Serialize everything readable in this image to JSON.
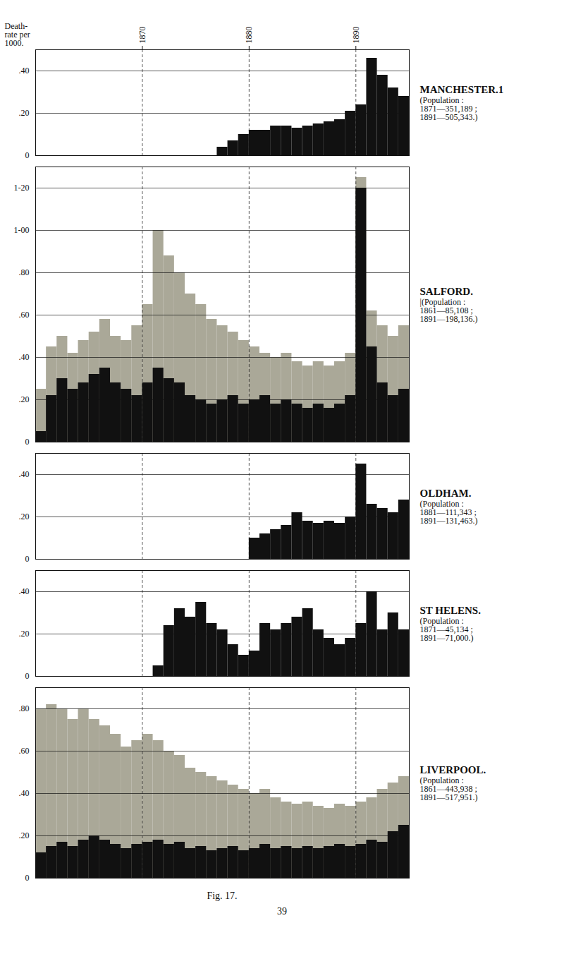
{
  "title": "Fig. 17.",
  "annotations": [
    "39"
  ],
  "chart_data": [
    {
      "type": "bar",
      "title": "MANCHESTER.1",
      "ylabel": "Death-\nrate per\n1000.",
      "annotations": [
        "(Population :",
        "1871—351,189 ;",
        "1891—505,343.)"
      ],
      "x": [
        1860,
        1861,
        1862,
        1863,
        1864,
        1865,
        1866,
        1867,
        1868,
        1869,
        1870,
        1871,
        1872,
        1873,
        1874,
        1875,
        1876,
        1877,
        1878,
        1879,
        1880,
        1881,
        1882,
        1883,
        1884,
        1885,
        1886,
        1887,
        1888,
        1889,
        1890,
        1891,
        1892,
        1893,
        1894
      ],
      "values": [
        0,
        0,
        0,
        0,
        0,
        0,
        0,
        0,
        0,
        0,
        0,
        0,
        0,
        0,
        0,
        0,
        0,
        0.04,
        0.07,
        0.1,
        0.12,
        0.12,
        0.14,
        0.14,
        0.13,
        0.14,
        0.15,
        0.16,
        0.17,
        0.21,
        0.24,
        0.46,
        0.38,
        0.32,
        0.28
      ],
      "color": "#111111",
      "xlim": [
        1860,
        1895
      ],
      "xticks": [
        1870,
        1880,
        1890
      ],
      "ylim": [
        0.0,
        0.5
      ],
      "yticks": [
        0,
        {
          "value": 0.2,
          "label": ".20"
        },
        {
          "value": 0.4,
          "label": ".40"
        }
      ],
      "grid": true
    },
    {
      "type": "bar",
      "title": "SALFORD.",
      "annotations": [
        "|(Population :",
        "1861—85,108 ;",
        "1891—198,136.)"
      ],
      "x": [
        1860,
        1861,
        1862,
        1863,
        1864,
        1865,
        1866,
        1867,
        1868,
        1869,
        1870,
        1871,
        1872,
        1873,
        1874,
        1875,
        1876,
        1877,
        1878,
        1879,
        1880,
        1881,
        1882,
        1883,
        1884,
        1885,
        1886,
        1887,
        1888,
        1889,
        1890,
        1891,
        1892,
        1893,
        1894
      ],
      "series": [
        {
          "color": "#aaa898",
          "values": [
            0.25,
            0.45,
            0.5,
            0.42,
            0.48,
            0.52,
            0.58,
            0.5,
            0.48,
            0.55,
            0.65,
            1.0,
            0.88,
            0.8,
            0.7,
            0.65,
            0.58,
            0.55,
            0.52,
            0.48,
            0.45,
            0.42,
            0.4,
            0.42,
            0.38,
            0.36,
            0.38,
            0.36,
            0.38,
            0.42,
            1.25,
            0.62,
            0.55,
            0.5,
            0.55
          ]
        },
        {
          "color": "#111111",
          "values": [
            0.05,
            0.22,
            0.3,
            0.25,
            0.28,
            0.32,
            0.35,
            0.28,
            0.25,
            0.22,
            0.28,
            0.35,
            0.3,
            0.28,
            0.22,
            0.2,
            0.18,
            0.2,
            0.22,
            0.18,
            0.2,
            0.22,
            0.18,
            0.2,
            0.18,
            0.16,
            0.18,
            0.16,
            0.18,
            0.22,
            1.2,
            0.45,
            0.28,
            0.22,
            0.25
          ]
        }
      ],
      "stacked": false,
      "xlim": [
        1860,
        1895
      ],
      "xticks": [
        1870,
        1880,
        1890
      ],
      "ylim": [
        0.0,
        1.3
      ],
      "yticks": [
        0,
        {
          "value": 0.2,
          "label": ".20"
        },
        {
          "value": 0.4,
          "label": ".40"
        },
        {
          "value": 0.6,
          "label": ".60"
        },
        {
          "value": 0.8,
          "label": ".80"
        },
        {
          "value": 1.0,
          "label": "1-00"
        },
        {
          "value": 1.2,
          "label": "1-20"
        }
      ],
      "tick_labels": "y",
      "grid": true
    },
    {
      "type": "bar",
      "title": "OLDHAM.",
      "annotations": [
        "(Population :",
        "1881—111,343 ;",
        "1891—131,463.)"
      ],
      "x": [
        1860,
        1861,
        1862,
        1863,
        1864,
        1865,
        1866,
        1867,
        1868,
        1869,
        1870,
        1871,
        1872,
        1873,
        1874,
        1875,
        1876,
        1877,
        1878,
        1879,
        1880,
        1881,
        1882,
        1883,
        1884,
        1885,
        1886,
        1887,
        1888,
        1889,
        1890,
        1891,
        1892,
        1893,
        1894
      ],
      "values": [
        0,
        0,
        0,
        0,
        0,
        0,
        0,
        0,
        0,
        0,
        0,
        0,
        0,
        0,
        0,
        0,
        0,
        0,
        0,
        0,
        0.1,
        0.12,
        0.14,
        0.16,
        0.22,
        0.18,
        0.17,
        0.18,
        0.17,
        0.2,
        0.45,
        0.26,
        0.24,
        0.22,
        0.28
      ],
      "color": "#111111",
      "xlim": [
        1860,
        1895
      ],
      "xticks": [
        1870,
        1880,
        1890
      ],
      "ylim": [
        0.0,
        0.5
      ],
      "yticks": [
        0,
        {
          "value": 0.2,
          "label": ".20"
        },
        {
          "value": 0.4,
          "label": ".40"
        }
      ],
      "tick_labels": "y",
      "grid": true
    },
    {
      "type": "bar",
      "title": "ST HELENS.",
      "annotations": [
        "(Population :",
        "1871—45,134 ;",
        "1891—71,000.)"
      ],
      "x": [
        1860,
        1861,
        1862,
        1863,
        1864,
        1865,
        1866,
        1867,
        1868,
        1869,
        1870,
        1871,
        1872,
        1873,
        1874,
        1875,
        1876,
        1877,
        1878,
        1879,
        1880,
        1881,
        1882,
        1883,
        1884,
        1885,
        1886,
        1887,
        1888,
        1889,
        1890,
        1891,
        1892,
        1893,
        1894
      ],
      "values": [
        0,
        0,
        0,
        0,
        0,
        0,
        0,
        0,
        0,
        0,
        0,
        0.05,
        0.24,
        0.32,
        0.28,
        0.35,
        0.25,
        0.22,
        0.15,
        0.1,
        0.12,
        0.25,
        0.22,
        0.25,
        0.28,
        0.32,
        0.22,
        0.18,
        0.15,
        0.18,
        0.25,
        0.4,
        0.22,
        0.3,
        0.22
      ],
      "color": "#111111",
      "xlim": [
        1860,
        1895
      ],
      "xticks": [
        1870,
        1880,
        1890
      ],
      "ylim": [
        0.0,
        0.5
      ],
      "yticks": [
        0,
        {
          "value": 0.2,
          "label": ".20"
        },
        {
          "value": 0.4,
          "label": ".40"
        }
      ],
      "tick_labels": "y",
      "grid": true
    },
    {
      "type": "bar",
      "title": "LIVERPOOL.",
      "annotations": [
        "(Population :",
        "1861—443,938 ;",
        "1891—517,951.)"
      ],
      "x": [
        1860,
        1861,
        1862,
        1863,
        1864,
        1865,
        1866,
        1867,
        1868,
        1869,
        1870,
        1871,
        1872,
        1873,
        1874,
        1875,
        1876,
        1877,
        1878,
        1879,
        1880,
        1881,
        1882,
        1883,
        1884,
        1885,
        1886,
        1887,
        1888,
        1889,
        1890,
        1891,
        1892,
        1893,
        1894
      ],
      "series": [
        {
          "color": "#aaa898",
          "values": [
            0.8,
            0.82,
            0.8,
            0.75,
            0.8,
            0.75,
            0.72,
            0.68,
            0.62,
            0.65,
            0.68,
            0.65,
            0.6,
            0.58,
            0.52,
            0.5,
            0.48,
            0.46,
            0.44,
            0.42,
            0.4,
            0.42,
            0.38,
            0.36,
            0.35,
            0.36,
            0.34,
            0.33,
            0.35,
            0.34,
            0.36,
            0.38,
            0.42,
            0.45,
            0.48
          ]
        },
        {
          "color": "#111111",
          "values": [
            0.12,
            0.15,
            0.17,
            0.15,
            0.18,
            0.2,
            0.18,
            0.16,
            0.14,
            0.16,
            0.17,
            0.18,
            0.16,
            0.17,
            0.14,
            0.15,
            0.13,
            0.14,
            0.15,
            0.13,
            0.14,
            0.16,
            0.14,
            0.15,
            0.14,
            0.15,
            0.14,
            0.15,
            0.16,
            0.15,
            0.16,
            0.18,
            0.17,
            0.22,
            0.25
          ]
        }
      ],
      "stacked": false,
      "xlim": [
        1860,
        1895
      ],
      "xticks": [
        1870,
        1880,
        1890
      ],
      "ylim": [
        0.0,
        0.9
      ],
      "yticks": [
        0,
        {
          "value": 0.2,
          "label": ".20"
        },
        {
          "value": 0.4,
          "label": ".40"
        },
        {
          "value": 0.6,
          "label": ".60"
        },
        {
          "value": 0.8,
          "label": ".80"
        }
      ],
      "tick_labels": "y",
      "grid": true
    }
  ]
}
